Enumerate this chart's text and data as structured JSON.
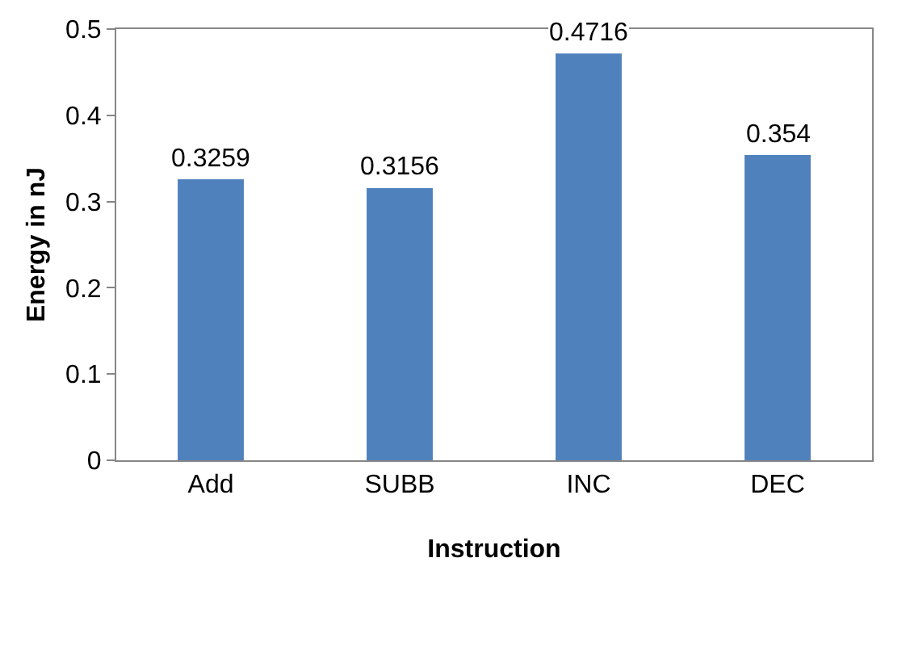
{
  "chart_data": {
    "type": "bar",
    "xlabel": "Instruction",
    "ylabel": "Energy in nJ",
    "categories": [
      "Add",
      "SUBB",
      "INC",
      "DEC"
    ],
    "values": [
      0.3259,
      0.3156,
      0.4716,
      0.354
    ],
    "value_labels": [
      "0.3259",
      "0.3156",
      "0.4716",
      "0.354"
    ],
    "color": "#4f81bd",
    "ylim": [
      0,
      0.5
    ],
    "yticks": [
      0,
      {
        "value": 0.1,
        "label": "0.1"
      },
      {
        "value": 0.2,
        "label": "0.2"
      },
      {
        "value": 0.3,
        "label": "0.3"
      },
      {
        "value": 0.4,
        "label": "0.4"
      },
      {
        "value": 0.5,
        "label": "0.5"
      }
    ],
    "grid": false,
    "legend": false
  }
}
